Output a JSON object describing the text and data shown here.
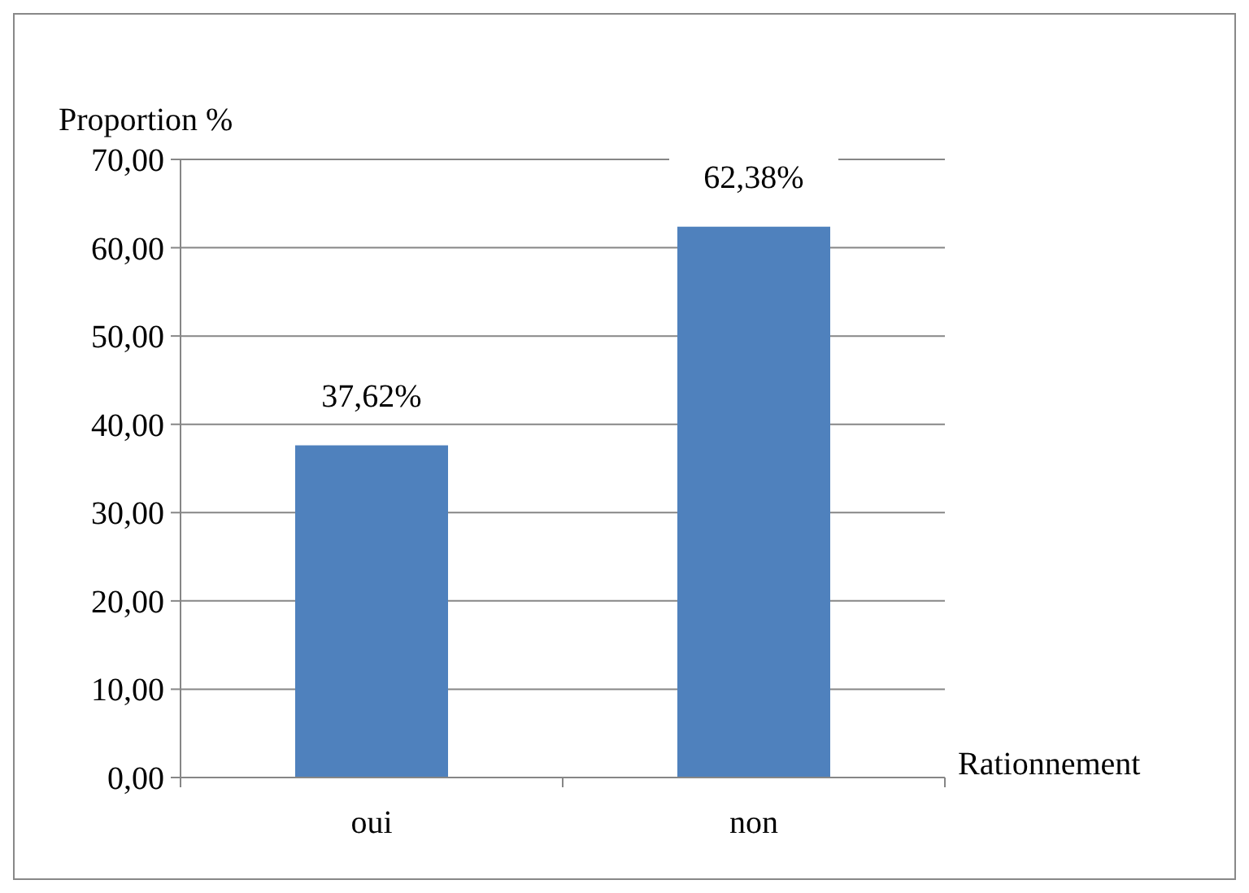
{
  "chart_data": {
    "type": "bar",
    "xlabel": "Rationnement",
    "ylabel": "Proportion %",
    "categories": [
      "oui",
      "non"
    ],
    "values": [
      37.62,
      62.38
    ],
    "color": "#4f81bd",
    "value_labels": [
      "37,62%",
      "62,38%"
    ],
    "ylim": [
      0,
      70
    ],
    "yticks": [
      {
        "value": 0,
        "label": "0,00"
      },
      {
        "value": 10,
        "label": "10,00"
      },
      {
        "value": 20,
        "label": "20,00"
      },
      {
        "value": 30,
        "label": "30,00"
      },
      {
        "value": 40,
        "label": "40,00"
      },
      {
        "value": 50,
        "label": "50,00"
      },
      {
        "value": 60,
        "label": "60,00"
      },
      {
        "value": 70,
        "label": "70,00"
      }
    ],
    "grid": "y"
  }
}
